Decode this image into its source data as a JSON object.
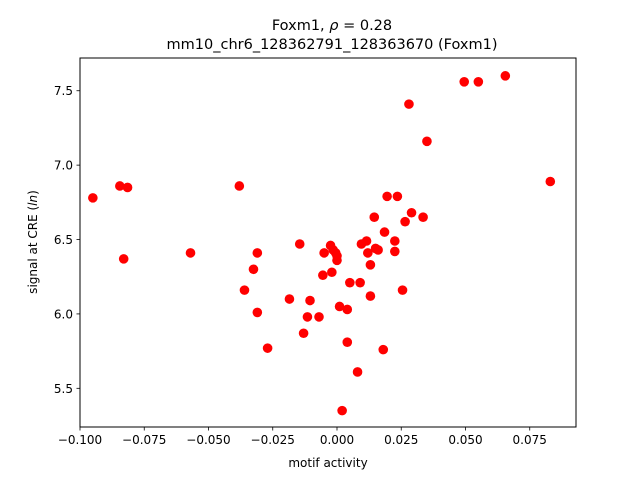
{
  "chart_data": {
    "type": "scatter",
    "title": "Foxm1, ρ = 0.28",
    "title_line1_prefix": "Foxm1, ",
    "title_line1_rho": "ρ",
    "title_line1_suffix": " = 0.28",
    "subtitle": "mm10_chr6_128362791_128363670 (Foxm1)",
    "xlabel": "motif activity",
    "ylabel_prefix": "signal at CRE (",
    "ylabel_italic": "ln",
    "ylabel_suffix": ")",
    "xlim": [
      -0.1,
      0.093
    ],
    "ylim": [
      5.24,
      7.72
    ],
    "x_ticks": [
      -0.1,
      -0.075,
      -0.05,
      -0.025,
      0.0,
      0.025,
      0.05,
      0.075
    ],
    "x_tick_labels": [
      "−0.100",
      "−0.075",
      "−0.050",
      "−0.025",
      "0.000",
      "0.025",
      "0.050",
      "0.075"
    ],
    "y_ticks": [
      5.5,
      6.0,
      6.5,
      7.0,
      7.5
    ],
    "y_tick_labels": [
      "5.5",
      "6.0",
      "6.5",
      "7.0",
      "7.5"
    ],
    "grid": false,
    "marker_color": "#ff0000",
    "points": [
      {
        "x": -0.095,
        "y": 6.78
      },
      {
        "x": -0.0845,
        "y": 6.86
      },
      {
        "x": -0.0815,
        "y": 6.85
      },
      {
        "x": -0.083,
        "y": 6.37
      },
      {
        "x": -0.057,
        "y": 6.41
      },
      {
        "x": -0.038,
        "y": 6.86
      },
      {
        "x": -0.036,
        "y": 6.16
      },
      {
        "x": -0.0325,
        "y": 6.3
      },
      {
        "x": -0.031,
        "y": 6.41
      },
      {
        "x": -0.031,
        "y": 6.01
      },
      {
        "x": -0.027,
        "y": 5.77
      },
      {
        "x": -0.0185,
        "y": 6.1
      },
      {
        "x": -0.0145,
        "y": 6.47
      },
      {
        "x": -0.013,
        "y": 5.87
      },
      {
        "x": -0.0115,
        "y": 5.98
      },
      {
        "x": -0.0105,
        "y": 6.09
      },
      {
        "x": -0.007,
        "y": 5.98
      },
      {
        "x": -0.0055,
        "y": 6.26
      },
      {
        "x": -0.005,
        "y": 6.41
      },
      {
        "x": -0.0025,
        "y": 6.46
      },
      {
        "x": -0.002,
        "y": 6.28
      },
      {
        "x": -0.0015,
        "y": 6.43
      },
      {
        "x": 0.0,
        "y": 6.39
      },
      {
        "x": -0.0005,
        "y": 6.41
      },
      {
        "x": 0.0,
        "y": 6.36
      },
      {
        "x": 0.001,
        "y": 6.05
      },
      {
        "x": 0.002,
        "y": 5.35
      },
      {
        "x": 0.004,
        "y": 6.03
      },
      {
        "x": 0.004,
        "y": 5.81
      },
      {
        "x": 0.005,
        "y": 6.21
      },
      {
        "x": 0.008,
        "y": 5.61
      },
      {
        "x": 0.009,
        "y": 6.21
      },
      {
        "x": 0.0095,
        "y": 6.47
      },
      {
        "x": 0.0115,
        "y": 6.49
      },
      {
        "x": 0.012,
        "y": 6.41
      },
      {
        "x": 0.013,
        "y": 6.33
      },
      {
        "x": 0.013,
        "y": 6.12
      },
      {
        "x": 0.0145,
        "y": 6.65
      },
      {
        "x": 0.015,
        "y": 6.44
      },
      {
        "x": 0.016,
        "y": 6.43
      },
      {
        "x": 0.018,
        "y": 5.76
      },
      {
        "x": 0.0185,
        "y": 6.55
      },
      {
        "x": 0.0195,
        "y": 6.79
      },
      {
        "x": 0.0225,
        "y": 6.42
      },
      {
        "x": 0.0225,
        "y": 6.49
      },
      {
        "x": 0.0235,
        "y": 6.79
      },
      {
        "x": 0.0255,
        "y": 6.16
      },
      {
        "x": 0.0265,
        "y": 6.62
      },
      {
        "x": 0.028,
        "y": 7.41
      },
      {
        "x": 0.029,
        "y": 6.68
      },
      {
        "x": 0.0335,
        "y": 6.65
      },
      {
        "x": 0.035,
        "y": 7.16
      },
      {
        "x": 0.0495,
        "y": 7.56
      },
      {
        "x": 0.055,
        "y": 7.56
      },
      {
        "x": 0.0655,
        "y": 7.6
      },
      {
        "x": 0.083,
        "y": 6.89
      }
    ]
  }
}
